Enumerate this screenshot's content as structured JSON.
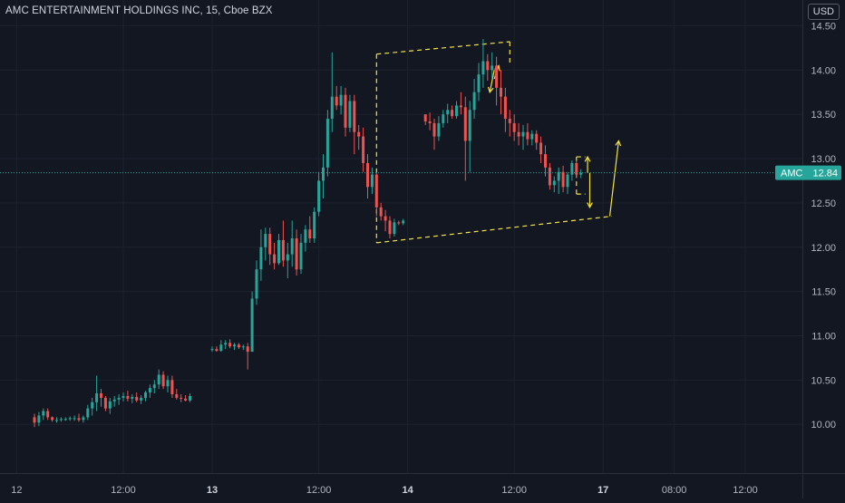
{
  "header": {
    "title": "AMC ENTERTAINMENT HOLDINGS INC, 15, Cboe BZX",
    "currency": "USD"
  },
  "colors": {
    "background": "#131722",
    "grid": "#1e222d",
    "up": "#26a69a",
    "down": "#ef5350",
    "annotation": "#f5e33f",
    "price_line": "#26a69a",
    "axis_text": "#b2b5be"
  },
  "chart_data": {
    "type": "candlestick",
    "symbol": "AMC",
    "interval": "15",
    "exchange": "Cboe BZX",
    "current_price": 12.84,
    "price_label": "AMC",
    "price_label_value": "12.84",
    "y_ticks": [
      "14.50",
      "14.00",
      "13.50",
      "13.00",
      "12.50",
      "12.00",
      "11.50",
      "11.00",
      "10.50",
      "10.00"
    ],
    "y_tick_values": [
      14.5,
      14.0,
      13.5,
      13.0,
      12.5,
      12.0,
      11.5,
      11.0,
      10.5,
      10.0
    ],
    "ylim": [
      9.45,
      14.75
    ],
    "x_ticks": [
      {
        "label": "12",
        "bar": -4,
        "bold": false
      },
      {
        "label": "12:00",
        "bar": 20,
        "bold": false
      },
      {
        "label": "13",
        "bar": 40,
        "bold": true
      },
      {
        "label": "12:00",
        "bar": 64,
        "bold": false
      },
      {
        "label": "14",
        "bar": 84,
        "bold": true
      },
      {
        "label": "12:00",
        "bar": 108,
        "bold": false
      },
      {
        "label": "17",
        "bar": 128,
        "bold": true
      },
      {
        "label": "08:00",
        "bar": 144,
        "bold": false
      },
      {
        "label": "12:00",
        "bar": 160,
        "bold": false
      }
    ],
    "candles": [
      [
        10.08,
        10.12,
        9.97,
        10.02
      ],
      [
        10.02,
        10.14,
        9.98,
        10.1
      ],
      [
        10.1,
        10.18,
        10.05,
        10.15
      ],
      [
        10.15,
        10.18,
        10.05,
        10.08
      ],
      [
        10.08,
        10.09,
        10.03,
        10.05
      ],
      [
        10.05,
        10.08,
        10.02,
        10.05
      ],
      [
        10.05,
        10.08,
        10.03,
        10.06
      ],
      [
        10.06,
        10.08,
        10.04,
        10.06
      ],
      [
        10.06,
        10.09,
        10.04,
        10.07
      ],
      [
        10.07,
        10.1,
        10.04,
        10.07
      ],
      [
        10.07,
        10.12,
        10.03,
        10.05
      ],
      [
        10.05,
        10.1,
        10.02,
        10.08
      ],
      [
        10.08,
        10.22,
        10.05,
        10.18
      ],
      [
        10.18,
        10.3,
        10.1,
        10.25
      ],
      [
        10.25,
        10.55,
        10.15,
        10.35
      ],
      [
        10.35,
        10.4,
        10.2,
        10.3
      ],
      [
        10.3,
        10.32,
        10.15,
        10.18
      ],
      [
        10.18,
        10.3,
        10.12,
        10.26
      ],
      [
        10.26,
        10.32,
        10.2,
        10.28
      ],
      [
        10.28,
        10.34,
        10.22,
        10.3
      ],
      [
        10.3,
        10.36,
        10.26,
        10.32
      ],
      [
        10.32,
        10.38,
        10.26,
        10.29
      ],
      [
        10.29,
        10.34,
        10.24,
        10.31
      ],
      [
        10.31,
        10.36,
        10.25,
        10.27
      ],
      [
        10.27,
        10.33,
        10.23,
        10.3
      ],
      [
        10.3,
        10.38,
        10.26,
        10.36
      ],
      [
        10.36,
        10.45,
        10.3,
        10.41
      ],
      [
        10.41,
        10.5,
        10.35,
        10.45
      ],
      [
        10.45,
        10.62,
        10.4,
        10.56
      ],
      [
        10.56,
        10.6,
        10.4,
        10.43
      ],
      [
        10.43,
        10.55,
        10.36,
        10.5
      ],
      [
        10.5,
        10.55,
        10.3,
        10.34
      ],
      [
        10.34,
        10.4,
        10.28,
        10.3
      ],
      [
        10.3,
        10.34,
        10.25,
        10.29
      ],
      [
        10.29,
        10.33,
        10.26,
        10.27
      ],
      [
        10.27,
        10.35,
        10.25,
        10.32
      ],
      null,
      null,
      null,
      null,
      [
        10.85,
        10.88,
        10.82,
        10.85
      ],
      [
        10.85,
        10.88,
        10.82,
        10.83
      ],
      [
        10.83,
        10.95,
        10.82,
        10.9
      ],
      [
        10.9,
        10.95,
        10.85,
        10.92
      ],
      [
        10.92,
        10.96,
        10.86,
        10.88
      ],
      [
        10.88,
        10.92,
        10.84,
        10.9
      ],
      [
        10.9,
        10.92,
        10.85,
        10.87
      ],
      [
        10.87,
        10.9,
        10.84,
        10.88
      ],
      [
        10.88,
        10.92,
        10.62,
        10.82
      ],
      [
        10.82,
        11.5,
        10.82,
        11.42
      ],
      [
        11.42,
        11.85,
        11.35,
        11.75
      ],
      [
        11.75,
        12.2,
        11.62,
        12.0
      ],
      [
        12.0,
        12.22,
        11.85,
        12.15
      ],
      [
        12.15,
        12.22,
        11.8,
        11.92
      ],
      [
        11.92,
        12.05,
        11.75,
        11.82
      ],
      [
        11.82,
        12.15,
        11.8,
        12.08
      ],
      [
        12.08,
        12.3,
        11.78,
        11.85
      ],
      [
        11.85,
        12.05,
        11.65,
        11.92
      ],
      [
        11.92,
        12.3,
        11.78,
        12.1
      ],
      [
        12.1,
        12.2,
        11.68,
        11.75
      ],
      [
        11.75,
        12.15,
        11.7,
        12.05
      ],
      [
        12.05,
        12.25,
        11.95,
        12.2
      ],
      [
        12.2,
        12.35,
        12.05,
        12.1
      ],
      [
        12.1,
        12.45,
        12.05,
        12.4
      ],
      [
        12.4,
        12.85,
        12.35,
        12.75
      ],
      [
        12.75,
        13.05,
        12.55,
        12.9
      ],
      [
        12.9,
        13.55,
        12.8,
        13.45
      ],
      [
        13.45,
        14.2,
        13.3,
        13.7
      ],
      [
        13.7,
        13.82,
        13.55,
        13.6
      ],
      [
        13.6,
        13.82,
        13.5,
        13.72
      ],
      [
        13.72,
        13.8,
        13.25,
        13.35
      ],
      [
        13.35,
        13.72,
        13.3,
        13.65
      ],
      [
        13.65,
        13.72,
        13.05,
        13.3
      ],
      [
        13.3,
        13.38,
        13.1,
        13.25
      ],
      [
        13.25,
        13.35,
        12.85,
        12.95
      ],
      [
        12.95,
        13.05,
        12.55,
        12.68
      ],
      [
        12.68,
        12.9,
        12.6,
        12.82
      ],
      [
        12.82,
        12.85,
        12.35,
        12.45
      ],
      [
        12.45,
        12.5,
        12.3,
        12.35
      ],
      [
        12.35,
        12.42,
        12.18,
        12.3
      ],
      [
        12.3,
        12.35,
        12.1,
        12.15
      ],
      [
        12.15,
        12.32,
        12.12,
        12.28
      ],
      [
        12.28,
        12.3,
        12.25,
        12.27
      ],
      [
        12.27,
        12.32,
        12.25,
        12.3
      ],
      null,
      null,
      null,
      null,
      [
        13.5,
        13.5,
        13.38,
        13.42
      ],
      [
        13.42,
        13.52,
        13.32,
        13.4
      ],
      [
        13.4,
        13.45,
        13.1,
        13.25
      ],
      [
        13.25,
        13.48,
        13.2,
        13.4
      ],
      [
        13.4,
        13.55,
        13.35,
        13.5
      ],
      [
        13.5,
        13.62,
        13.4,
        13.55
      ],
      [
        13.55,
        13.6,
        13.45,
        13.48
      ],
      [
        13.48,
        13.65,
        13.45,
        13.6
      ],
      [
        13.6,
        13.75,
        13.5,
        13.58
      ],
      [
        13.58,
        13.7,
        12.75,
        13.2
      ],
      [
        13.2,
        13.65,
        12.85,
        13.55
      ],
      [
        13.55,
        13.9,
        13.45,
        13.75
      ],
      [
        13.75,
        14.08,
        13.65,
        13.95
      ],
      [
        13.95,
        14.35,
        13.8,
        14.1
      ],
      [
        14.1,
        14.18,
        13.88,
        14.0
      ],
      [
        14.0,
        14.2,
        13.9,
        14.05
      ],
      [
        14.05,
        14.15,
        13.6,
        13.8
      ],
      [
        13.8,
        14.0,
        13.5,
        13.7
      ],
      [
        13.7,
        13.8,
        13.3,
        13.45
      ],
      [
        13.45,
        13.55,
        13.25,
        13.4
      ],
      [
        13.4,
        13.5,
        13.2,
        13.3
      ],
      [
        13.3,
        13.4,
        13.15,
        13.25
      ],
      [
        13.25,
        13.38,
        13.1,
        13.3
      ],
      [
        13.3,
        13.4,
        13.15,
        13.22
      ],
      [
        13.22,
        13.32,
        13.15,
        13.28
      ],
      [
        13.28,
        13.32,
        13.1,
        13.18
      ],
      [
        13.18,
        13.25,
        12.95,
        13.05
      ],
      [
        13.05,
        13.15,
        12.8,
        12.9
      ],
      [
        12.9,
        12.95,
        12.65,
        12.7
      ],
      [
        12.7,
        12.8,
        12.62,
        12.75
      ],
      [
        12.75,
        12.9,
        12.6,
        12.85
      ],
      [
        12.85,
        12.92,
        12.62,
        12.68
      ],
      [
        12.68,
        12.85,
        12.6,
        12.82
      ],
      [
        12.82,
        12.98,
        12.75,
        12.95
      ],
      [
        12.95,
        12.98,
        12.78,
        12.82
      ],
      [
        12.82,
        12.88,
        12.78,
        12.84
      ]
    ],
    "annotations": [
      {
        "type": "dashed-line",
        "points": [
          [
            77,
            14.18
          ],
          [
            107,
            14.32
          ]
        ]
      },
      {
        "type": "dashed-line",
        "points": [
          [
            77,
            12.05
          ],
          [
            130,
            12.35
          ]
        ]
      },
      {
        "type": "dashed-line",
        "points": [
          [
            77,
            14.18
          ],
          [
            77,
            12.05
          ]
        ]
      },
      {
        "type": "dashed-line",
        "points": [
          [
            107,
            14.32
          ],
          [
            107,
            14.05
          ]
        ]
      },
      {
        "type": "dashed-line",
        "points": [
          [
            122,
            13.02
          ],
          [
            124,
            13.02
          ]
        ]
      },
      {
        "type": "dashed-line",
        "points": [
          [
            122,
            12.6
          ],
          [
            124,
            12.6
          ]
        ]
      },
      {
        "type": "dashed-line",
        "points": [
          [
            122,
            13.02
          ],
          [
            122,
            12.6
          ]
        ]
      },
      {
        "type": "arrow",
        "points": [
          [
            103.5,
            13.9
          ],
          [
            104.5,
            14.05
          ]
        ]
      },
      {
        "type": "arrow",
        "points": [
          [
            103.5,
            14.0
          ],
          [
            102.5,
            13.75
          ]
        ]
      },
      {
        "type": "arrow",
        "points": [
          [
            124.5,
            12.84
          ],
          [
            124.5,
            13.02
          ]
        ]
      },
      {
        "type": "arrow",
        "points": [
          [
            125,
            12.84
          ],
          [
            125,
            12.45
          ]
        ]
      },
      {
        "type": "arrow",
        "points": [
          [
            129.5,
            12.35
          ],
          [
            131.5,
            13.2
          ]
        ]
      }
    ]
  }
}
